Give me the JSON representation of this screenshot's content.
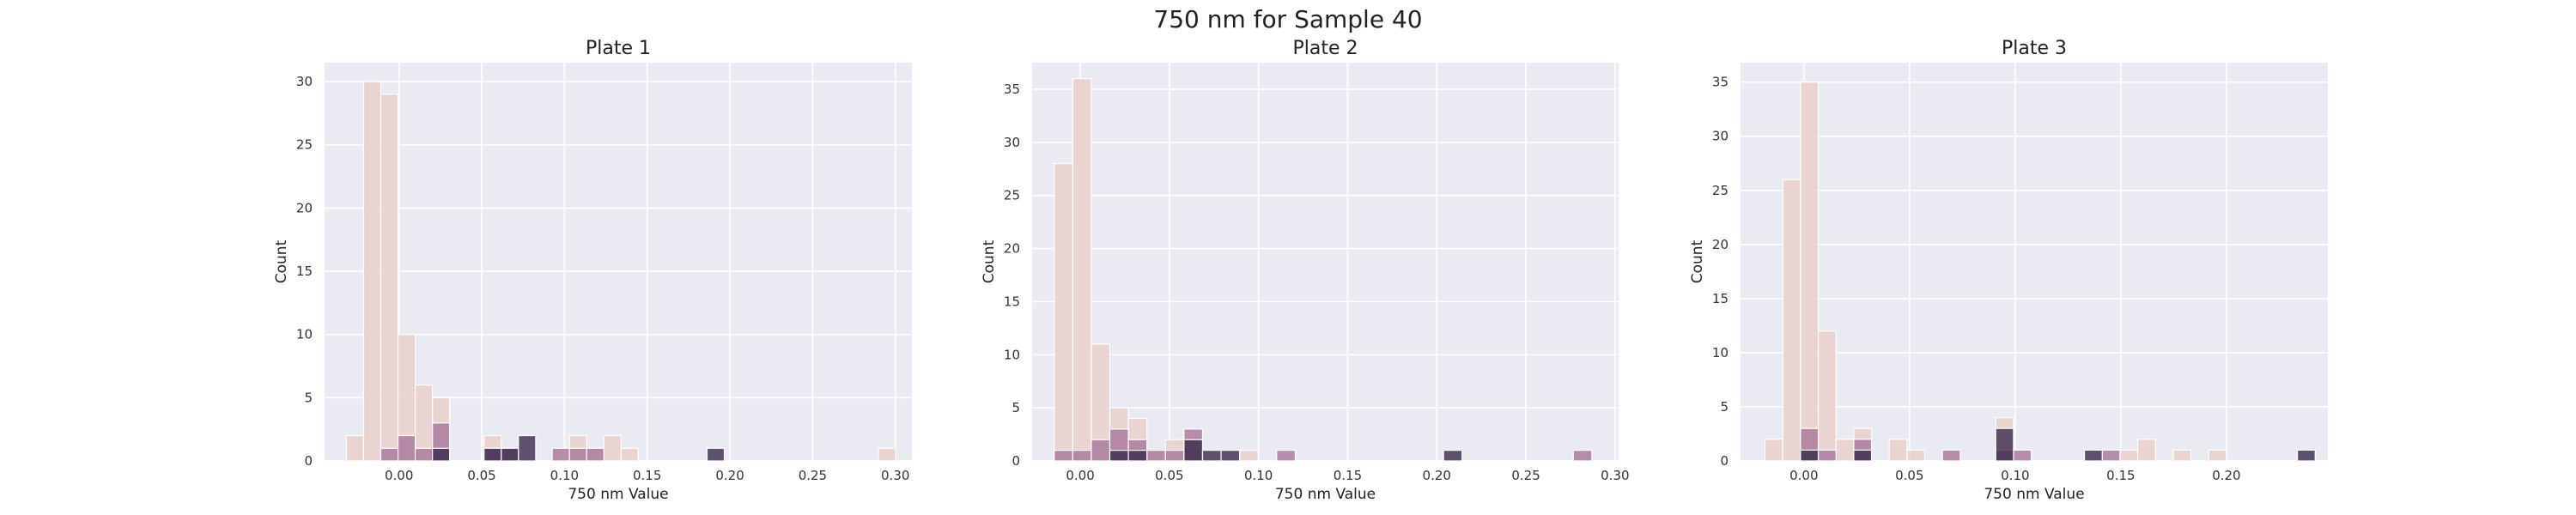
{
  "suptitle": "750 nm for Sample 40",
  "colors": {
    "background": "#eaeaf2",
    "grid": "#ffffff",
    "light": "#e9d0cd",
    "mid": "#a7749a",
    "dark": "#3a2a4c"
  },
  "chart_data": [
    {
      "type": "bar",
      "title": "Plate 1",
      "xlabel": "750 nm Value",
      "ylabel": "Count",
      "xlim": [
        -0.045,
        0.31
      ],
      "ylim": [
        0,
        31.5
      ],
      "xticks": [
        0.0,
        0.05,
        0.1,
        0.15,
        0.2,
        0.25,
        0.3
      ],
      "xtick_labels": [
        "0.00",
        "0.05",
        "0.10",
        "0.15",
        "0.20",
        "0.25",
        "0.30"
      ],
      "yticks": [
        0,
        5,
        10,
        15,
        20,
        25,
        30
      ],
      "bin_width": 0.0104,
      "series": [
        {
          "name": "light",
          "color": "#e9d0cd",
          "bins": [
            [
              -0.0318,
              2
            ],
            [
              -0.0214,
              30
            ],
            [
              -0.011,
              29
            ],
            [
              -0.0006,
              10
            ],
            [
              0.0098,
              6
            ],
            [
              0.0202,
              5
            ],
            [
              0.0514,
              2
            ],
            [
              0.0618,
              1
            ],
            [
              0.103,
              2
            ],
            [
              0.1134,
              1
            ],
            [
              0.1238,
              2
            ],
            [
              0.1342,
              1
            ],
            [
              0.2898,
              1
            ]
          ]
        },
        {
          "name": "mid",
          "color": "#a7749a",
          "bins": [
            [
              -0.011,
              1
            ],
            [
              -0.0006,
              2
            ],
            [
              0.0098,
              1
            ],
            [
              0.0202,
              3
            ],
            [
              0.0514,
              1
            ],
            [
              0.0618,
              1
            ],
            [
              0.0926,
              1
            ],
            [
              0.103,
              1
            ],
            [
              0.1134,
              1
            ]
          ]
        },
        {
          "name": "dark",
          "color": "#3a2a4c",
          "bins": [
            [
              0.0202,
              1
            ],
            [
              0.0514,
              1
            ],
            [
              0.0618,
              1
            ],
            [
              0.0722,
              2
            ],
            [
              0.1862,
              1
            ]
          ]
        }
      ]
    },
    {
      "type": "bar",
      "title": "Plate 2",
      "xlabel": "750 nm Value",
      "ylabel": "Count",
      "xlim": [
        -0.027,
        0.302
      ],
      "ylim": [
        0,
        37.5
      ],
      "xticks": [
        0.0,
        0.05,
        0.1,
        0.15,
        0.2,
        0.25,
        0.3
      ],
      "xtick_labels": [
        "0.00",
        "0.05",
        "0.10",
        "0.15",
        "0.20",
        "0.25",
        "0.30"
      ],
      "yticks": [
        0,
        5,
        10,
        15,
        20,
        25,
        30,
        35
      ],
      "bin_width": 0.0104,
      "series": [
        {
          "name": "light",
          "color": "#e9d0cd",
          "bins": [
            [
              -0.0146,
              28
            ],
            [
              -0.0042,
              36
            ],
            [
              0.0062,
              11
            ],
            [
              0.0166,
              5
            ],
            [
              0.027,
              4
            ],
            [
              0.0374,
              1
            ],
            [
              0.0478,
              2
            ],
            [
              0.0582,
              2
            ],
            [
              0.0894,
              1
            ]
          ]
        },
        {
          "name": "mid",
          "color": "#a7749a",
          "bins": [
            [
              -0.0146,
              1
            ],
            [
              -0.0042,
              1
            ],
            [
              0.0062,
              2
            ],
            [
              0.0166,
              3
            ],
            [
              0.027,
              2
            ],
            [
              0.0374,
              1
            ],
            [
              0.0478,
              1
            ],
            [
              0.0582,
              3
            ],
            [
              0.1102,
              1
            ],
            [
              0.2766,
              1
            ]
          ]
        },
        {
          "name": "dark",
          "color": "#3a2a4c",
          "bins": [
            [
              0.0166,
              1
            ],
            [
              0.027,
              1
            ],
            [
              0.0582,
              2
            ],
            [
              0.0686,
              1
            ],
            [
              0.079,
              1
            ],
            [
              0.2038,
              1
            ]
          ]
        }
      ]
    },
    {
      "type": "bar",
      "title": "Plate 3",
      "xlabel": "750 nm Value",
      "ylabel": "Count",
      "xlim": [
        -0.03,
        0.248
      ],
      "ylim": [
        0,
        36.8
      ],
      "xticks": [
        0.0,
        0.05,
        0.1,
        0.15,
        0.2
      ],
      "xtick_labels": [
        "0.00",
        "0.05",
        "0.10",
        "0.15",
        "0.20"
      ],
      "yticks": [
        0,
        5,
        10,
        15,
        20,
        25,
        30,
        35
      ],
      "bin_width": 0.0084,
      "series": [
        {
          "name": "light",
          "color": "#e9d0cd",
          "bins": [
            [
              -0.0184,
              2
            ],
            [
              -0.01,
              26
            ],
            [
              -0.0016,
              35
            ],
            [
              0.0068,
              12
            ],
            [
              0.0152,
              2
            ],
            [
              0.0236,
              3
            ],
            [
              0.0404,
              2
            ],
            [
              0.0488,
              1
            ],
            [
              0.0908,
              4
            ],
            [
              0.1496,
              1
            ],
            [
              0.158,
              2
            ],
            [
              0.1748,
              1
            ],
            [
              0.1916,
              1
            ]
          ]
        },
        {
          "name": "mid",
          "color": "#a7749a",
          "bins": [
            [
              -0.0016,
              3
            ],
            [
              0.0068,
              1
            ],
            [
              0.0236,
              2
            ],
            [
              0.0656,
              1
            ],
            [
              0.0908,
              1
            ],
            [
              0.0992,
              1
            ],
            [
              0.1412,
              1
            ]
          ]
        },
        {
          "name": "dark",
          "color": "#3a2a4c",
          "bins": [
            [
              -0.0016,
              1
            ],
            [
              0.0236,
              1
            ],
            [
              0.0908,
              3
            ],
            [
              0.1328,
              1
            ],
            [
              0.2336,
              1
            ]
          ]
        }
      ]
    }
  ]
}
